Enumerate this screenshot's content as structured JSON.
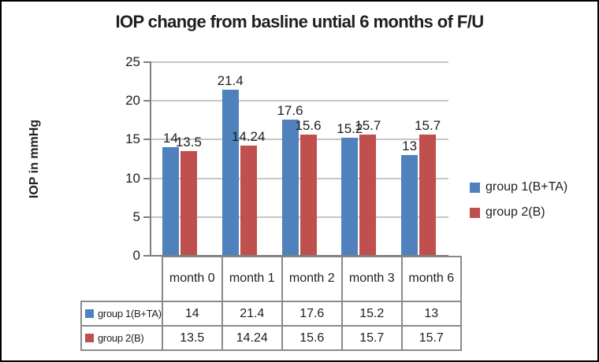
{
  "title": "IOP change from basline untial 6 months of F/U",
  "palette": {
    "series1_blue": "#4f81bd",
    "series2_red": "#c0504d",
    "gridline": "#c6c6c6",
    "axis_line": "#7f7f7f",
    "table_border": "#8a8a8a",
    "text": "#1f1f1f",
    "frame_border": "#000000"
  },
  "chart_data": {
    "type": "bar",
    "title": "IOP change from basline untial 6 months of F/U",
    "xlabel": "",
    "ylabel": "IOP in mmHg",
    "categories": [
      "month 0",
      "month 1",
      "month 2",
      "month 3",
      "month 6"
    ],
    "series": [
      {
        "name": "group 1(B+TA)",
        "color": "#4f81bd",
        "values": [
          14,
          21.4,
          17.6,
          15.2,
          13
        ]
      },
      {
        "name": "group 2(B)",
        "color": "#c0504d",
        "values": [
          13.5,
          14.24,
          15.6,
          15.7,
          15.7
        ]
      }
    ],
    "ylim": [
      0,
      25
    ],
    "ytick_step": 5,
    "yticks": [
      0,
      5,
      10,
      15,
      20,
      25
    ],
    "grid": true,
    "value_labels_visible": true,
    "legend_position": "right",
    "show_data_table": true
  }
}
